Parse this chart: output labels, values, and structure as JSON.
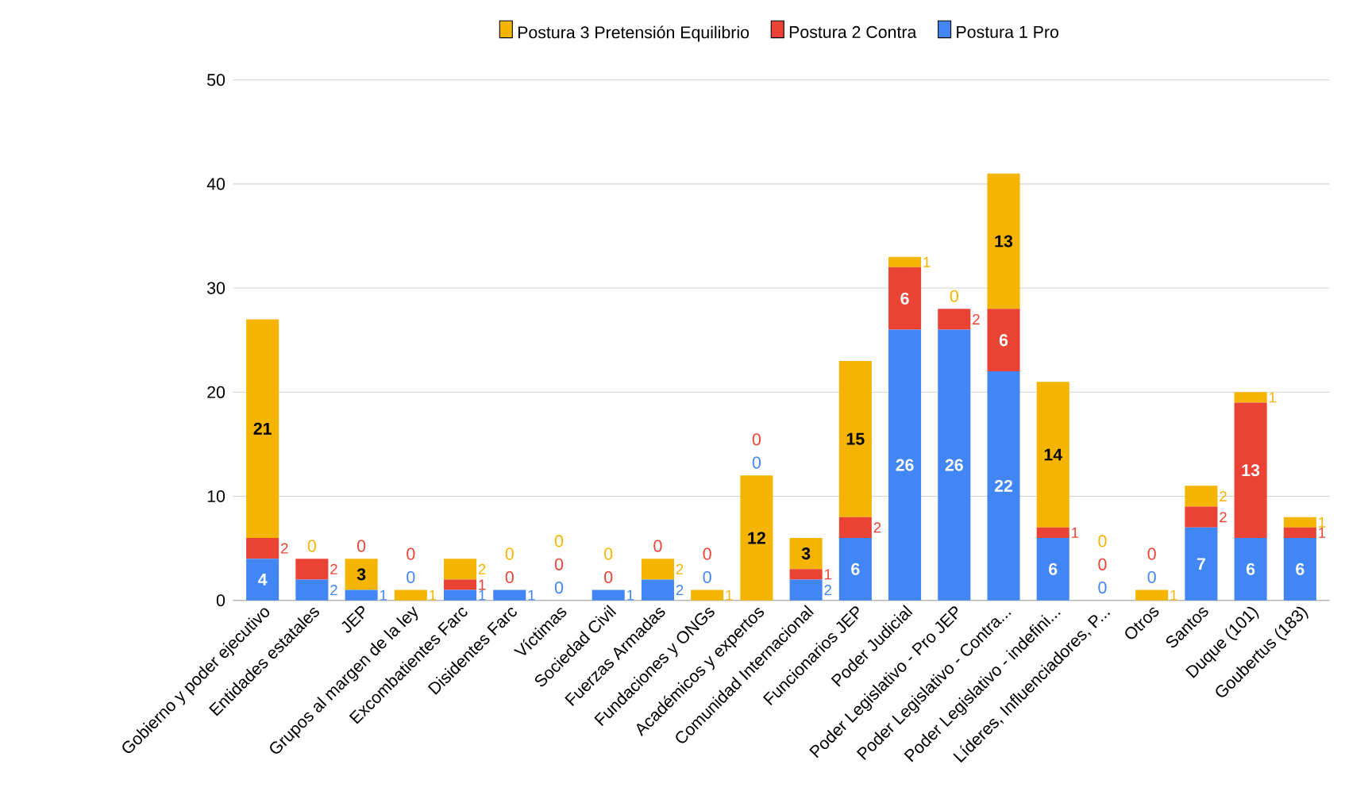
{
  "chart_data": {
    "type": "bar",
    "stacked": true,
    "categories": [
      "Gobierno y poder ejecutivo",
      "Entidades estatales",
      "JEP",
      "Grupos al margen de la ley",
      "Excombatientes Farc",
      "Disidentes Farc",
      "Víctimas",
      "Sociedad Civil",
      "Fuerzas Armadas",
      "Fundaciones y ONGs",
      "Académicos y expertos",
      "Comunidad Internacional",
      "Funcionarios JEP",
      "Poder Judicial",
      "Poder Legislativo - Pro JEP",
      "Poder Legislativo - Contra...",
      "Poder Legislativo - indefini...",
      "Líderes, Influenciadores, P...",
      "Otros",
      "Santos",
      "Duque (101)",
      "Goubertus (183)"
    ],
    "series": [
      {
        "name": "Postura 1 Pro",
        "color": "#4285f4",
        "values": [
          4,
          2,
          1,
          0,
          1,
          1,
          0,
          1,
          2,
          0,
          0,
          2,
          6,
          26,
          26,
          22,
          6,
          0,
          0,
          7,
          6,
          6
        ]
      },
      {
        "name": "Postura 2 Contra",
        "color": "#ea4335",
        "values": [
          2,
          2,
          0,
          0,
          1,
          0,
          0,
          0,
          0,
          0,
          0,
          1,
          2,
          6,
          2,
          6,
          1,
          0,
          0,
          2,
          13,
          1
        ]
      },
      {
        "name": "Postura 3 Pretensión Equilibrio",
        "color": "#f4b400",
        "values": [
          21,
          0,
          3,
          1,
          2,
          0,
          0,
          0,
          2,
          1,
          12,
          3,
          15,
          1,
          0,
          13,
          14,
          0,
          1,
          2,
          1,
          1
        ]
      }
    ],
    "ylim": [
      0,
      50
    ],
    "yticks": [
      0,
      10,
      20,
      30,
      40,
      50
    ],
    "grid": "y",
    "legend": "top",
    "data_labels": true
  }
}
